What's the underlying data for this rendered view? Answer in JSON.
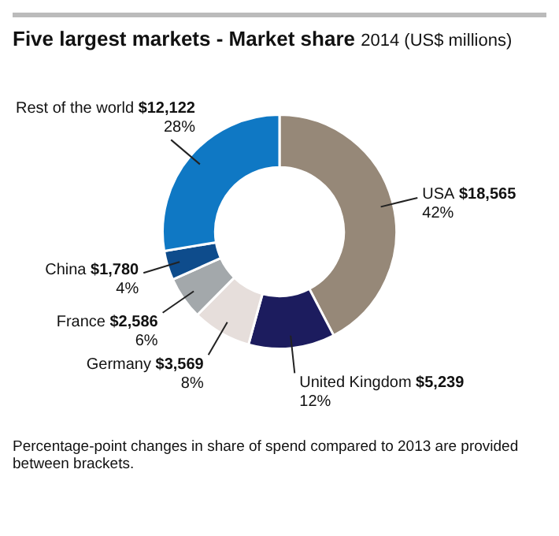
{
  "chart_data": {
    "type": "donut",
    "title": "Five largest markets - Market share",
    "subtitle": "2014 (US$ millions)",
    "categories": [
      "USA",
      "United Kingdom",
      "Germany",
      "France",
      "China",
      "Rest of the world"
    ],
    "values": [
      18565,
      5239,
      3569,
      2586,
      1780,
      12122
    ],
    "colors": [
      "#968878",
      "#1c1c5e",
      "#e6dedb",
      "#a3a8ab",
      "#0e4c8c",
      "#0f78c4"
    ],
    "value_labels": [
      "$18,565\n42%",
      "$5,239\n12%",
      "$3,569\n8%",
      "$2,586\n6%",
      "$1,780\n4%",
      "$12,122\n28%"
    ],
    "legend": false,
    "annotations": [
      "Percentage-point changes in share of spend compared to 2013 are provided between brackets."
    ]
  }
}
